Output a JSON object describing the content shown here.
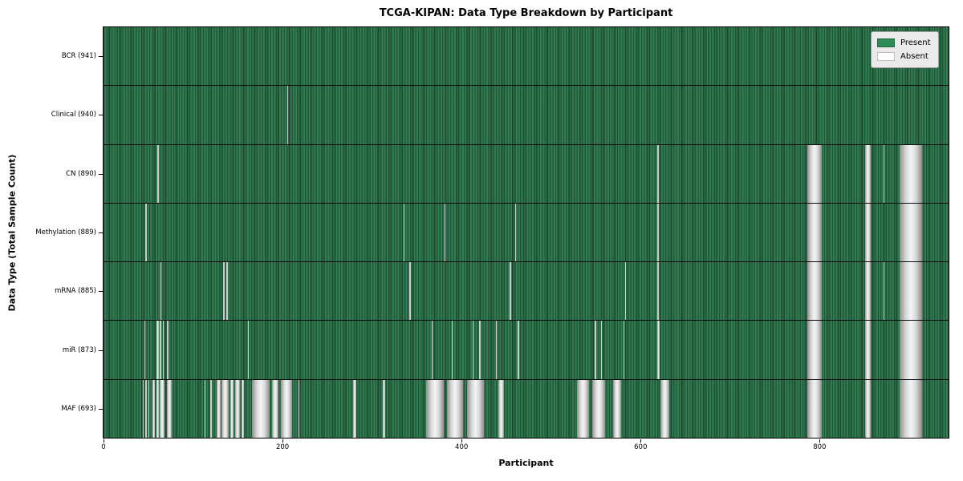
{
  "figure": {
    "title": "TCGA-KIPAN: Data Type Breakdown by Participant",
    "xlabel": "Participant",
    "ylabel": "Data Type (Total Sample Count)"
  },
  "legend": {
    "items": [
      {
        "name": "present",
        "label": "Present",
        "color": "#2e8b57"
      },
      {
        "name": "absent",
        "label": "Absent",
        "color": "#ffffff"
      }
    ]
  },
  "chart_data": {
    "type": "heatmap",
    "title": "TCGA-KIPAN: Data Type Breakdown by Participant",
    "xlabel": "Participant",
    "ylabel": "Data Type (Total Sample Count)",
    "legend": [
      "Present",
      "Absent"
    ],
    "legend_position": "upper right",
    "colors": {
      "present": "#2e8b57",
      "absent": "#ffffff",
      "absent_block": "#bdbdbd"
    },
    "x_axis": {
      "ticks": [
        0,
        200,
        400,
        600,
        800
      ],
      "axis_max": 944,
      "n_participants": 941,
      "grid": false
    },
    "rows": [
      {
        "data_type": "BCR",
        "label": "BCR (941)",
        "present_count": 941,
        "absent_count": 0,
        "absent_ranges": []
      },
      {
        "data_type": "Clinical",
        "label": "Clinical (940)",
        "present_count": 940,
        "absent_count": 1,
        "absent_ranges": [
          [
            205,
            206
          ]
        ]
      },
      {
        "data_type": "CN",
        "label": "CN (890)",
        "present_count": 890,
        "absent_count": 51,
        "absent_ranges": [
          [
            60,
            62
          ],
          [
            619,
            620
          ],
          [
            786,
            802
          ],
          [
            851,
            857
          ],
          [
            871,
            872
          ],
          [
            889,
            914
          ]
        ]
      },
      {
        "data_type": "Methylation",
        "label": "Methylation (889)",
        "present_count": 889,
        "absent_count": 52,
        "absent_ranges": [
          [
            47,
            48
          ],
          [
            335,
            336
          ],
          [
            381,
            382
          ],
          [
            460,
            461
          ],
          [
            619,
            620
          ],
          [
            786,
            802
          ],
          [
            851,
            857
          ],
          [
            889,
            914
          ]
        ]
      },
      {
        "data_type": "mRNA",
        "label": "mRNA (885)",
        "present_count": 885,
        "absent_count": 56,
        "absent_ranges": [
          [
            64,
            65
          ],
          [
            134,
            135
          ],
          [
            137,
            139
          ],
          [
            342,
            343
          ],
          [
            454,
            455
          ],
          [
            583,
            584
          ],
          [
            619,
            620
          ],
          [
            786,
            802
          ],
          [
            851,
            857
          ],
          [
            871,
            872
          ],
          [
            889,
            914
          ]
        ]
      },
      {
        "data_type": "miR",
        "label": "miR (873)",
        "present_count": 873,
        "absent_count": 68,
        "absent_ranges": [
          [
            46,
            47
          ],
          [
            59,
            62
          ],
          [
            63,
            65
          ],
          [
            66,
            67
          ],
          [
            71,
            73
          ],
          [
            161,
            162
          ],
          [
            367,
            368
          ],
          [
            389,
            390
          ],
          [
            412,
            413
          ],
          [
            420,
            421
          ],
          [
            438,
            439
          ],
          [
            463,
            464
          ],
          [
            549,
            550
          ],
          [
            556,
            557
          ],
          [
            581,
            582
          ],
          [
            619,
            621
          ],
          [
            786,
            802
          ],
          [
            851,
            857
          ],
          [
            889,
            914
          ]
        ]
      },
      {
        "data_type": "MAF",
        "label": "MAF (693)",
        "present_count": 693,
        "absent_count": 248,
        "absent_ranges": [
          [
            44,
            45
          ],
          [
            47,
            48
          ],
          [
            50,
            51
          ],
          [
            55,
            57
          ],
          [
            59,
            62
          ],
          [
            63,
            68
          ],
          [
            71,
            76
          ],
          [
            113,
            114
          ],
          [
            119,
            121
          ],
          [
            126,
            131
          ],
          [
            132,
            140
          ],
          [
            142,
            145
          ],
          [
            147,
            152
          ],
          [
            154,
            157
          ],
          [
            166,
            186
          ],
          [
            188,
            195
          ],
          [
            198,
            211
          ],
          [
            218,
            219
          ],
          [
            279,
            282
          ],
          [
            312,
            315
          ],
          [
            360,
            380
          ],
          [
            384,
            402
          ],
          [
            406,
            425
          ],
          [
            441,
            447
          ],
          [
            529,
            542
          ],
          [
            546,
            560
          ],
          [
            569,
            578
          ],
          [
            622,
            632
          ],
          [
            786,
            802
          ],
          [
            851,
            857
          ],
          [
            889,
            914
          ]
        ]
      }
    ]
  }
}
